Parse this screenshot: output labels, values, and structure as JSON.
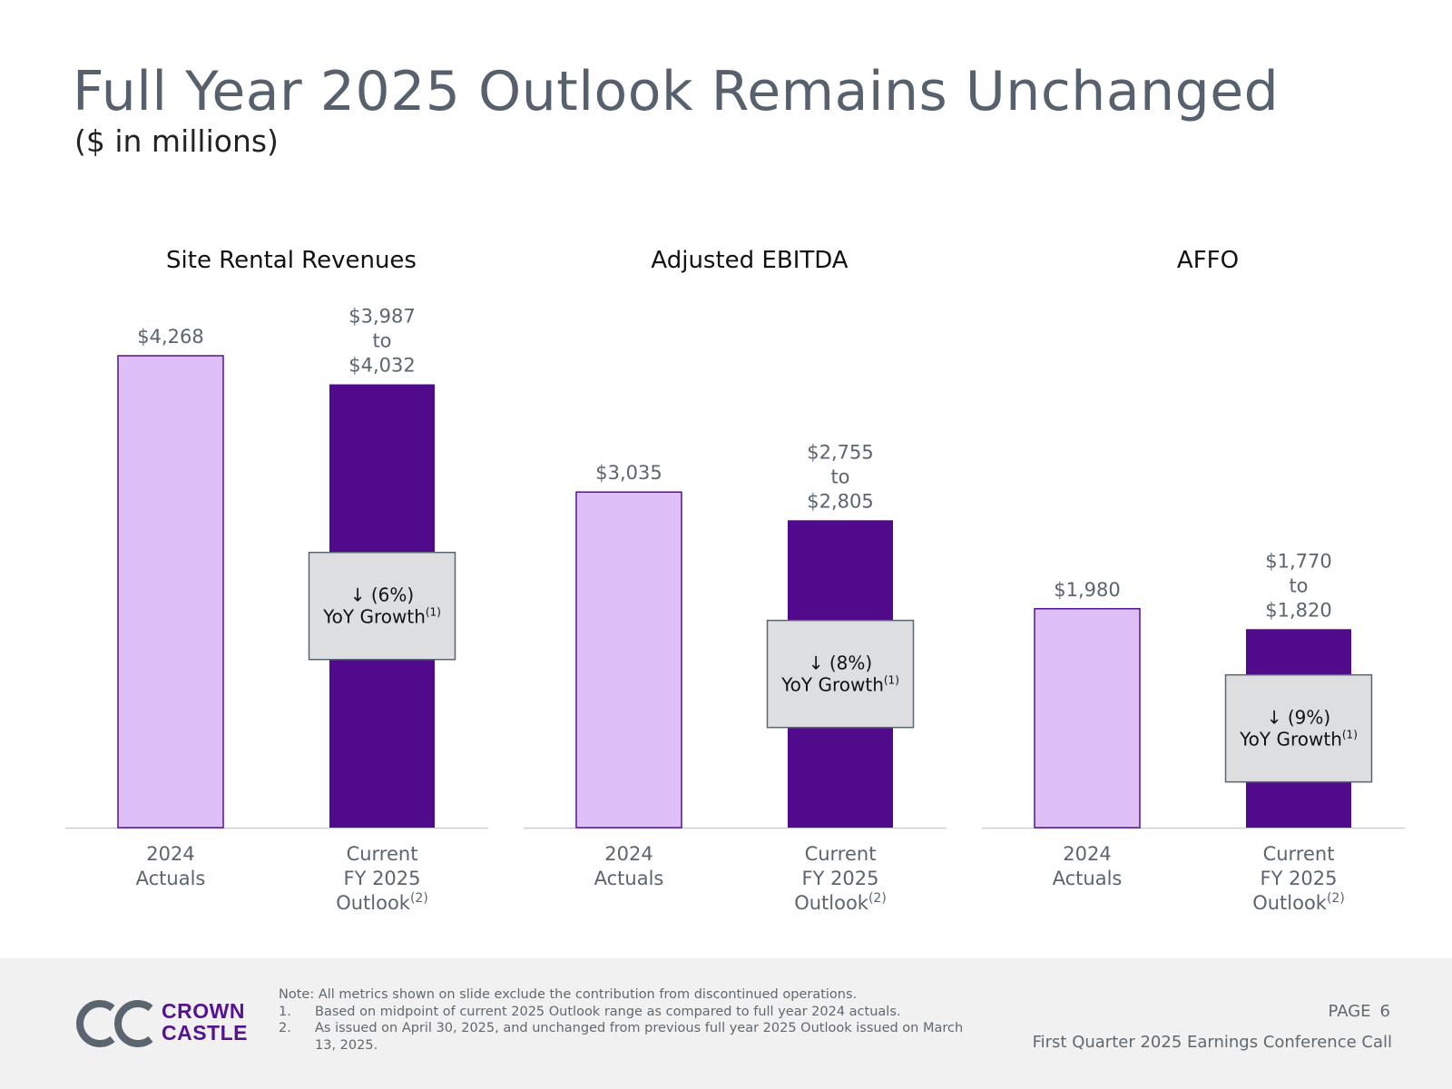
{
  "page": {
    "title": "Full Year 2025 Outlook Remains Unchanged",
    "subtitle": "($ in millions)"
  },
  "colors": {
    "actual_bar": "#dfbff8",
    "actual_border": "#55138f",
    "outlook_bar": "#520a8c",
    "badge_fill": "#dcdee0",
    "badge_border": "#5a6570",
    "title_text": "#56616d",
    "axis": "#cfcfcf"
  },
  "chart_data": [
    {
      "type": "bar",
      "title": "Site Rental Revenues",
      "categories": [
        {
          "lines": [
            "2024",
            "Actuals"
          ],
          "sup": ""
        },
        {
          "lines": [
            "Current",
            "FY 2025",
            "Outlook"
          ],
          "sup": "(2)"
        }
      ],
      "values": [
        4268,
        4009.5
      ],
      "range": [
        3987,
        4032
      ],
      "value_labels": [
        [
          "$4,268"
        ],
        [
          "$3,987",
          "to",
          "$4,032"
        ]
      ],
      "growth": {
        "arrow": "↓",
        "value": "(6%)",
        "label": "YoY Growth",
        "sup": "(1)"
      },
      "ylim": [
        0,
        4268
      ]
    },
    {
      "type": "bar",
      "title": "Adjusted EBITDA",
      "categories": [
        {
          "lines": [
            "2024",
            "Actuals"
          ],
          "sup": ""
        },
        {
          "lines": [
            "Current",
            "FY 2025",
            "Outlook"
          ],
          "sup": "(2)"
        }
      ],
      "values": [
        3035,
        2780
      ],
      "range": [
        2755,
        2805
      ],
      "value_labels": [
        [
          "$3,035"
        ],
        [
          "$2,755",
          "to",
          "$2,805"
        ]
      ],
      "growth": {
        "arrow": "↓",
        "value": "(8%)",
        "label": "YoY Growth",
        "sup": "(1)"
      },
      "ylim": [
        0,
        4268
      ]
    },
    {
      "type": "bar",
      "title": "AFFO",
      "categories": [
        {
          "lines": [
            "2024",
            "Actuals"
          ],
          "sup": ""
        },
        {
          "lines": [
            "Current",
            "FY 2025",
            "Outlook"
          ],
          "sup": "(2)"
        }
      ],
      "values": [
        1980,
        1795
      ],
      "range": [
        1770,
        1820
      ],
      "value_labels": [
        [
          "$1,980"
        ],
        [
          "$1,770",
          "to",
          "$1,820"
        ]
      ],
      "growth": {
        "arrow": "↓",
        "value": "(9%)",
        "label": "YoY Growth",
        "sup": "(1)"
      },
      "ylim": [
        0,
        4268
      ]
    }
  ],
  "footer": {
    "logo": {
      "line1": "CROWN",
      "line2": "CASTLE"
    },
    "note": "Note: All metrics shown on slide exclude the contribution from discontinued operations.",
    "footnotes": [
      {
        "num": "1.",
        "text": "Based on midpoint of current 2025 Outlook range as compared to full year 2024 actuals."
      },
      {
        "num": "2.",
        "text": "As issued on April 30, 2025, and unchanged from previous full year 2025 Outlook issued on March 13, 2025."
      }
    ],
    "page_label": "PAGE",
    "page_number": "6",
    "call_name": "First Quarter 2025 Earnings Conference Call"
  }
}
